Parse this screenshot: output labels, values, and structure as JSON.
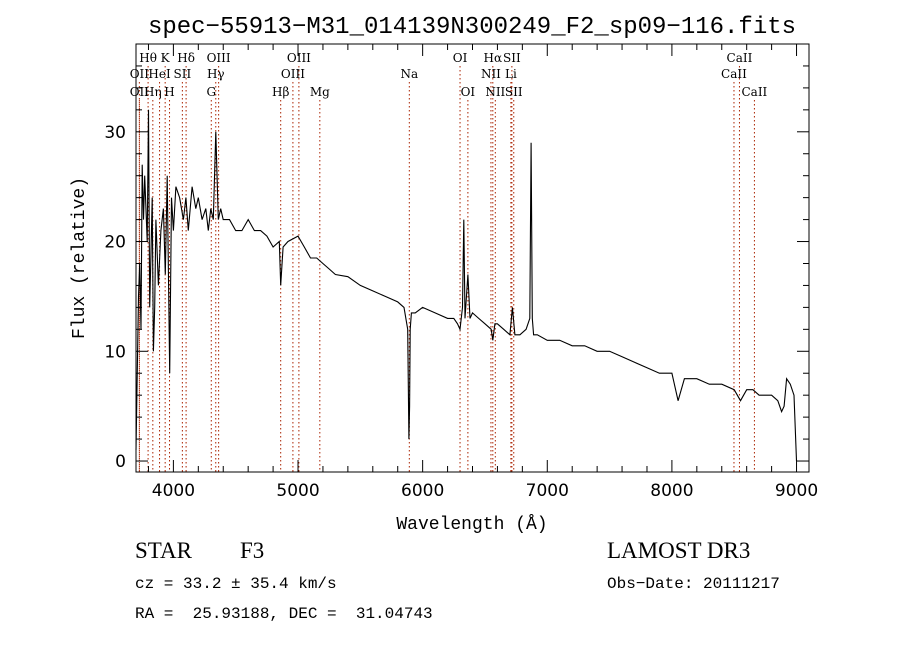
{
  "chart_data": {
    "type": "line",
    "title": "spec−55913−M31_014139N300249_F2_sp09−116.fits",
    "xlabel": "Wavelength (Å)",
    "ylabel": "Flux (relative)",
    "xlim": [
      3700,
      9100
    ],
    "ylim": [
      -1,
      38
    ],
    "x_ticks": [
      4000,
      5000,
      6000,
      7000,
      8000,
      9000
    ],
    "y_ticks": [
      0,
      10,
      20,
      30
    ],
    "x_tick_labels": [
      "4000",
      "5000",
      "6000",
      "7000",
      "8000",
      "9000"
    ],
    "y_tick_labels": [
      "0",
      "10",
      "20",
      "30"
    ],
    "series": [
      {
        "name": "flux",
        "x": [
          3700,
          3720,
          3730,
          3740,
          3750,
          3760,
          3770,
          3790,
          3800,
          3810,
          3820,
          3830,
          3840,
          3850,
          3860,
          3880,
          3900,
          3920,
          3935,
          3950,
          3970,
          3985,
          4000,
          4020,
          4050,
          4080,
          4100,
          4120,
          4150,
          4180,
          4200,
          4230,
          4260,
          4280,
          4300,
          4320,
          4340,
          4360,
          4380,
          4400,
          4450,
          4500,
          4550,
          4600,
          4650,
          4700,
          4750,
          4800,
          4850,
          4861,
          4880,
          4920,
          5000,
          5050,
          5100,
          5150,
          5200,
          5250,
          5300,
          5400,
          5500,
          5600,
          5700,
          5800,
          5850,
          5880,
          5890,
          5895,
          5900,
          5910,
          5940,
          6000,
          6100,
          6200,
          6250,
          6280,
          6300,
          6320,
          6330,
          6340,
          6363,
          6380,
          6400,
          6450,
          6500,
          6550,
          6563,
          6580,
          6600,
          6650,
          6700,
          6720,
          6740,
          6780,
          6830,
          6860,
          6870,
          6880,
          6890,
          6920,
          7000,
          7100,
          7200,
          7300,
          7400,
          7500,
          7600,
          7700,
          7800,
          7900,
          8000,
          8050,
          8100,
          8200,
          8300,
          8400,
          8500,
          8550,
          8600,
          8650,
          8700,
          8800,
          8850,
          8880,
          8900,
          8920,
          8950,
          8980,
          9000
        ],
        "values": [
          1,
          15,
          18,
          12,
          27,
          22,
          26,
          20,
          32,
          14,
          19,
          24,
          10,
          14,
          22,
          16,
          21,
          23,
          17,
          26,
          8,
          24,
          21,
          25,
          24,
          22,
          24,
          21,
          25,
          23,
          24,
          22,
          23,
          21,
          23,
          22,
          30,
          22,
          23,
          22,
          22,
          21,
          21,
          22,
          21,
          21,
          20.5,
          19.5,
          20,
          16,
          19.5,
          20,
          20.5,
          19.5,
          18.5,
          18.5,
          18,
          17.5,
          17,
          16.8,
          16,
          15.5,
          15,
          14.5,
          14,
          12,
          2,
          5,
          12,
          13.5,
          13.5,
          14,
          13.5,
          13,
          13,
          12.5,
          12,
          14,
          22,
          13,
          17,
          13,
          13.5,
          13,
          12.5,
          12,
          11,
          12.5,
          12.5,
          12,
          11.5,
          14,
          11.5,
          11.5,
          12,
          13,
          29,
          13,
          11.5,
          11.5,
          11,
          11,
          10.5,
          10.5,
          10,
          10,
          9.5,
          9,
          8.5,
          8,
          8,
          5.5,
          7.5,
          7.5,
          7,
          7,
          6.5,
          5.5,
          6.5,
          6.5,
          6,
          6,
          5.5,
          4.5,
          5,
          7.5,
          7,
          6,
          0
        ]
      }
    ],
    "lines": [
      {
        "label": "Hθ",
        "x": 3797,
        "row": 1
      },
      {
        "label": "OII",
        "x": 3727,
        "row": 2
      },
      {
        "label": "OII",
        "x": 3727,
        "row": 3
      },
      {
        "label": "Hη",
        "x": 3835,
        "row": 3
      },
      {
        "label": "K",
        "x": 3934,
        "row": 1
      },
      {
        "label": "HeI",
        "x": 3889,
        "row": 2
      },
      {
        "label": "H",
        "x": 3969,
        "row": 3
      },
      {
        "label": "Hδ",
        "x": 4102,
        "row": 1
      },
      {
        "label": "SII",
        "x": 4072,
        "row": 2
      },
      {
        "label": "OIII",
        "x": 4363,
        "row": 1
      },
      {
        "label": "Hγ",
        "x": 4340,
        "row": 2
      },
      {
        "label": "G",
        "x": 4304,
        "row": 3
      },
      {
        "label": "Hβ",
        "x": 4861,
        "row": 3
      },
      {
        "label": "OIII",
        "x": 5007,
        "row": 1
      },
      {
        "label": "OIII",
        "x": 4959,
        "row": 2
      },
      {
        "label": "Mg",
        "x": 5175,
        "row": 3
      },
      {
        "label": "Na",
        "x": 5893,
        "row": 2
      },
      {
        "label": "OI",
        "x": 6300,
        "row": 1
      },
      {
        "label": "OI",
        "x": 6363,
        "row": 3
      },
      {
        "label": "Hα",
        "x": 6563,
        "row": 1
      },
      {
        "label": "NII",
        "x": 6548,
        "row": 2
      },
      {
        "label": "NII",
        "x": 6583,
        "row": 3
      },
      {
        "label": "SII",
        "x": 6716,
        "row": 1
      },
      {
        "label": "Li",
        "x": 6708,
        "row": 2
      },
      {
        "label": "SII",
        "x": 6731,
        "row": 3
      },
      {
        "label": "CaII",
        "x": 8542,
        "row": 1
      },
      {
        "label": "CaII",
        "x": 8498,
        "row": 2
      },
      {
        "label": "CaII",
        "x": 8662,
        "row": 3
      }
    ],
    "line_color": "#aa2200"
  },
  "info": {
    "object_class": "STAR",
    "subclass": "F3",
    "survey": "LAMOST DR3",
    "cz": "cz = 33.2 ± 35.4 km/s",
    "obs_date": "Obs−Date: 20111217",
    "coords": "RA =  25.93188, DEC =  31.04743"
  }
}
